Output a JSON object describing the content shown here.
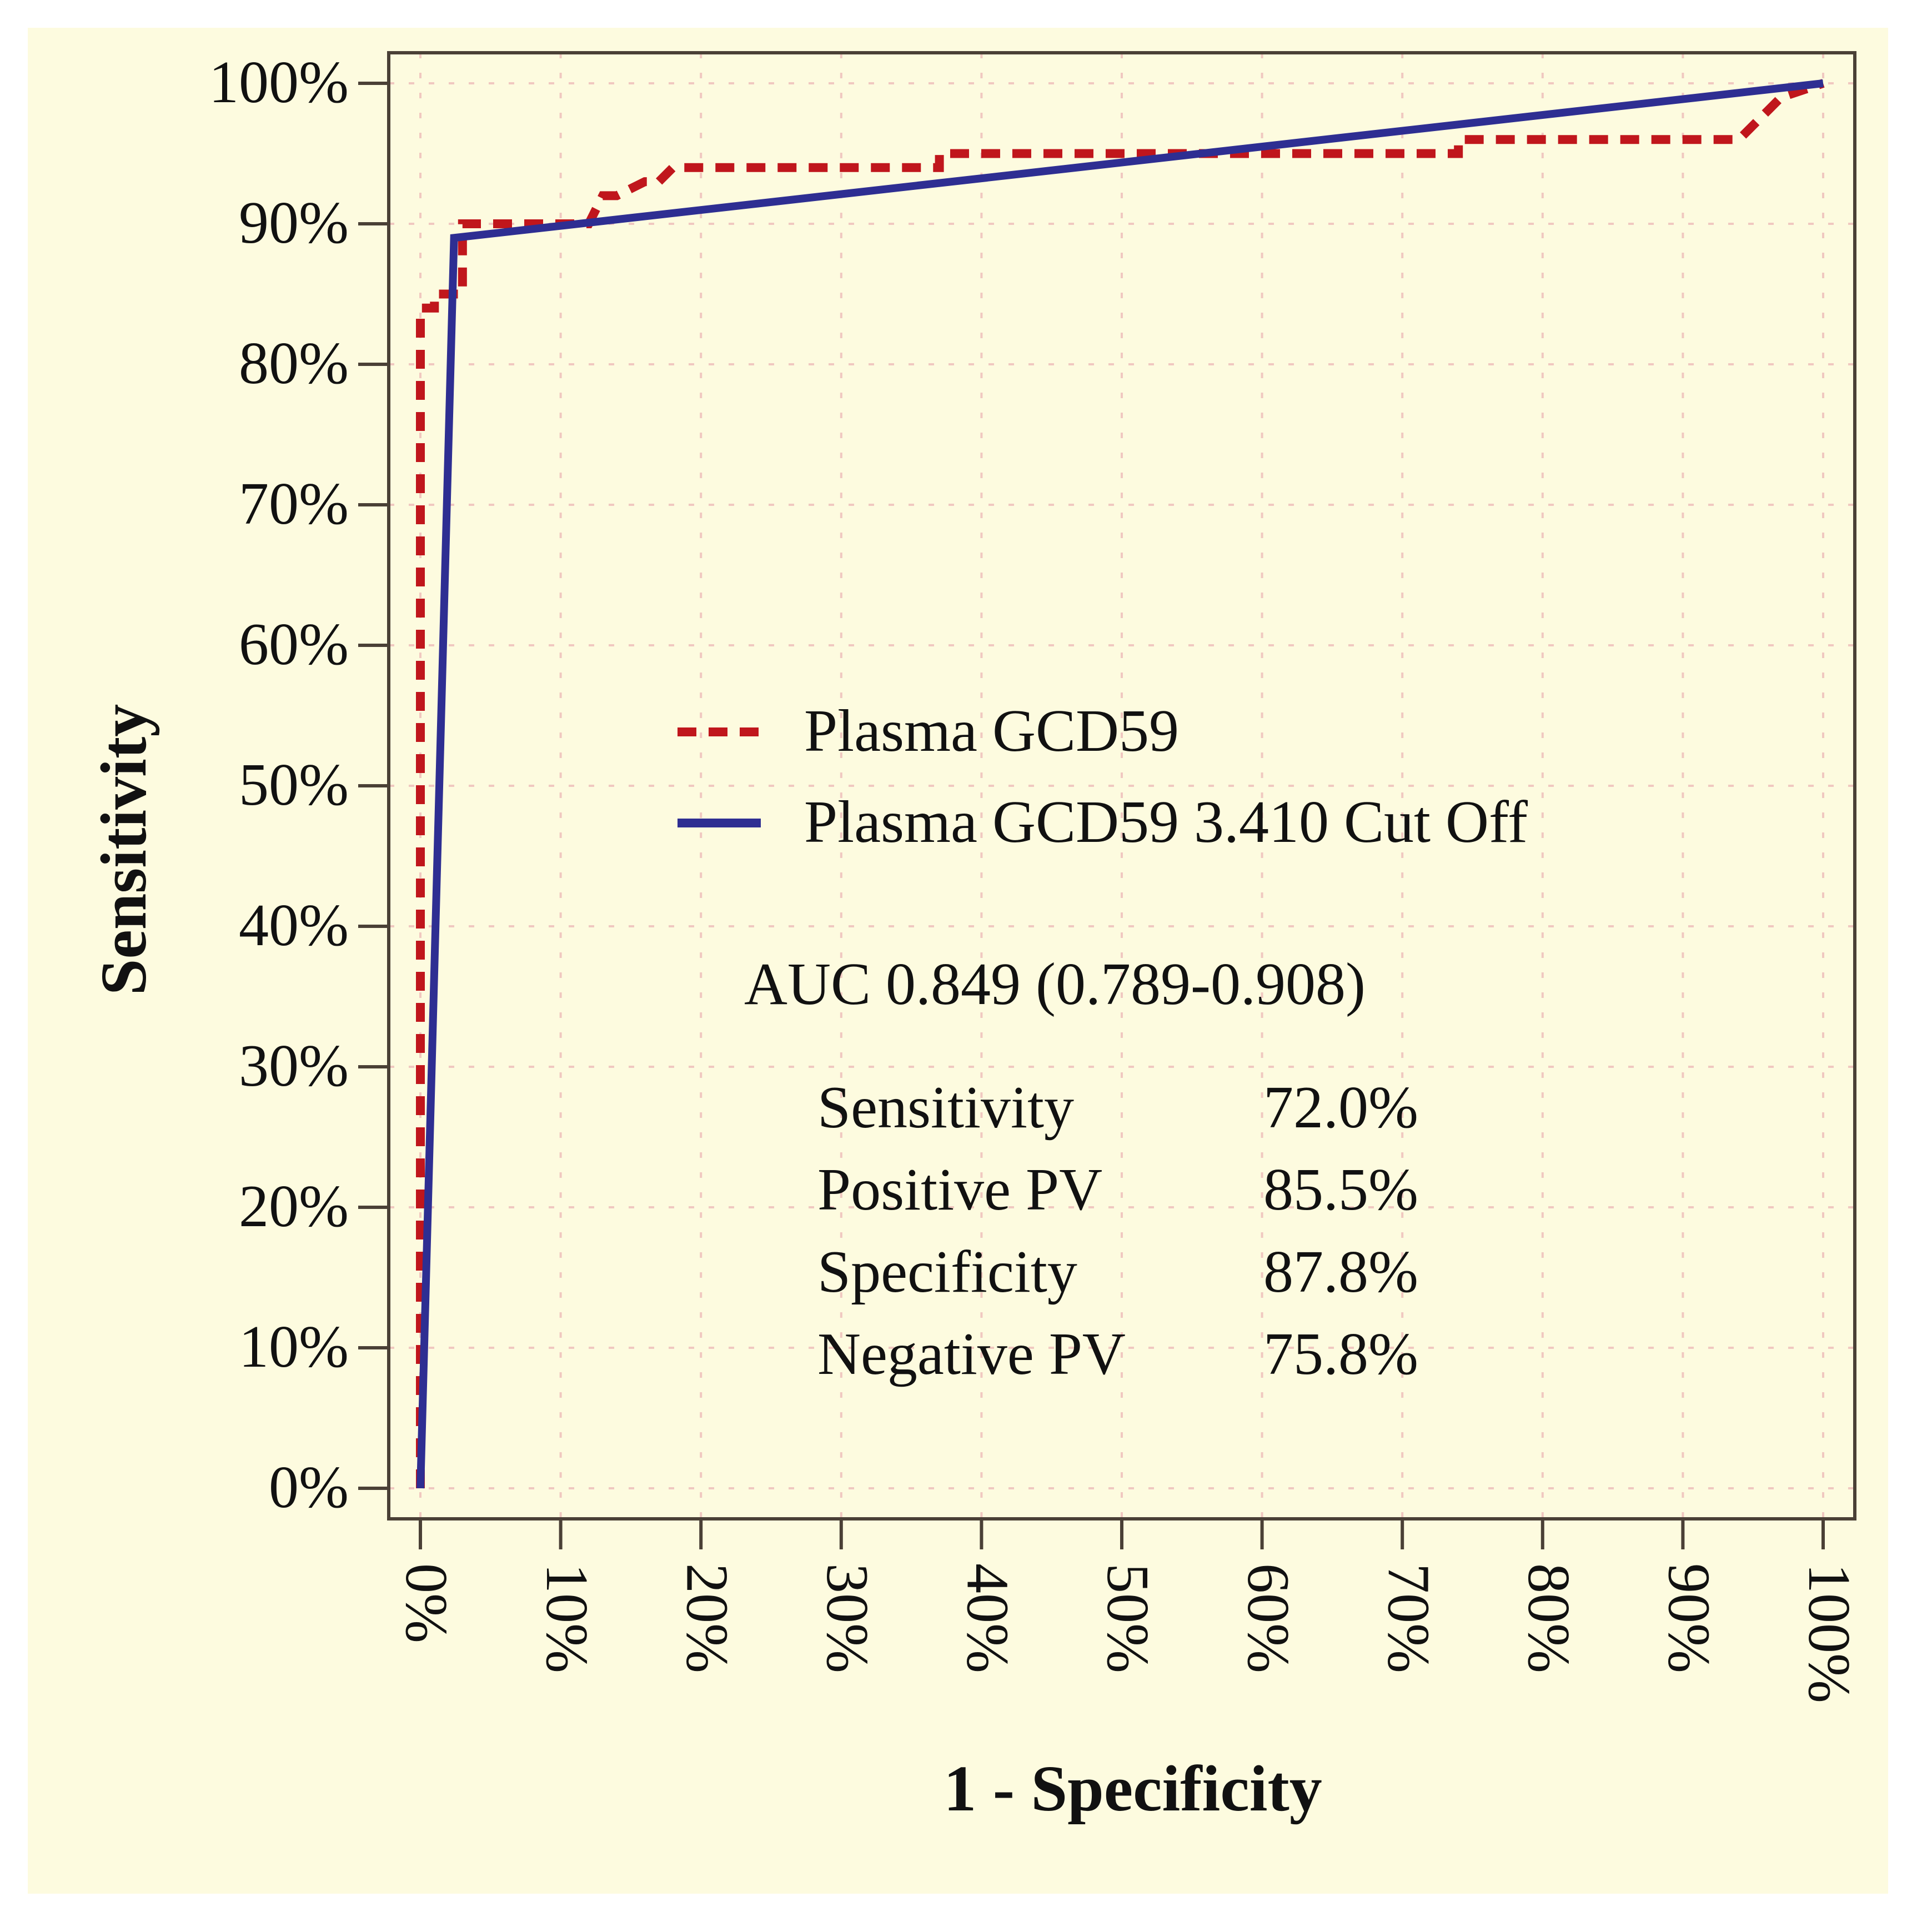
{
  "colors": {
    "page_background": "#ffffff",
    "plot_background": "#fdfbdf",
    "frame": "#4a4036",
    "grid": "#f0c8c0",
    "dashed_series": "#c0161c",
    "solid_series": "#2e2e92",
    "text": "#111111"
  },
  "chart_data": {
    "type": "line",
    "title": "",
    "xlabel": "1 - Specificity",
    "ylabel": "Sensitivity",
    "xlim": [
      0,
      100
    ],
    "ylim": [
      0,
      100
    ],
    "grid": true,
    "x_ticks": [
      0,
      10,
      20,
      30,
      40,
      50,
      60,
      70,
      80,
      90,
      100
    ],
    "y_ticks": [
      0,
      10,
      20,
      30,
      40,
      50,
      60,
      70,
      80,
      90,
      100
    ],
    "x_tick_labels": [
      "0%",
      "10%",
      "20%",
      "30%",
      "40%",
      "50%",
      "60%",
      "70%",
      "80%",
      "90%",
      "100%"
    ],
    "y_tick_labels": [
      "0%",
      "10%",
      "20%",
      "30%",
      "40%",
      "50%",
      "60%",
      "70%",
      "80%",
      "90%",
      "100%"
    ],
    "series": [
      {
        "name": "Plasma GCD59",
        "style": "dashed",
        "color": "#c0161c",
        "x": [
          0,
          0,
          1,
          1,
          2,
          3,
          3,
          4,
          6,
          12,
          13,
          14,
          16,
          17,
          18,
          36,
          37,
          37,
          38,
          60,
          62,
          73,
          74,
          74,
          94,
          95,
          96,
          97,
          100
        ],
        "y": [
          0,
          84,
          84,
          85,
          85,
          85,
          90,
          90,
          90,
          90,
          92,
          92,
          93,
          93,
          94,
          94,
          94,
          95,
          95,
          95,
          95,
          95,
          95,
          96,
          96,
          97,
          98,
          99,
          100
        ]
      },
      {
        "name": "Plasma GCD59 3.410 Cut Off",
        "style": "solid",
        "color": "#2e2e92",
        "x": [
          0,
          2.4,
          100
        ],
        "y": [
          0,
          89,
          100
        ]
      }
    ],
    "legend_position": "center",
    "annotations": {
      "auc": "AUC 0.849 (0.789-0.908)",
      "stats": [
        {
          "label": "Sensitivity",
          "value": "72.0%"
        },
        {
          "label": "Positive PV",
          "value": "85.5%"
        },
        {
          "label": "Specificity",
          "value": "87.8%"
        },
        {
          "label": "Negative PV",
          "value": "75.8%"
        }
      ]
    }
  }
}
